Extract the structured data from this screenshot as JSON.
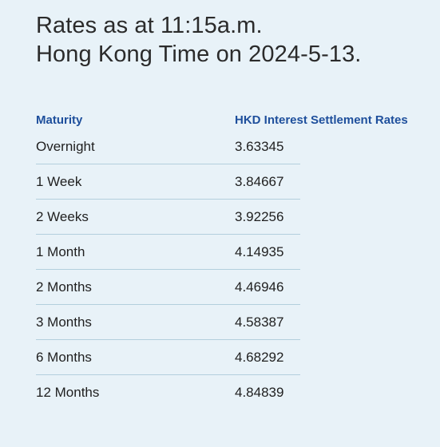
{
  "heading": {
    "line1": "Rates as at 11:15a.m.",
    "line2": "Hong Kong Time on 2024-5-13."
  },
  "table": {
    "headers": {
      "maturity": "Maturity",
      "rate": "HKD Interest Settlement Rates"
    },
    "rows": [
      {
        "maturity": "Overnight",
        "rate": "3.63345"
      },
      {
        "maturity": "1 Week",
        "rate": "3.84667"
      },
      {
        "maturity": "2 Weeks",
        "rate": "3.92256"
      },
      {
        "maturity": "1 Month",
        "rate": "4.14935"
      },
      {
        "maturity": "2 Months",
        "rate": "4.46946"
      },
      {
        "maturity": "3 Months",
        "rate": "4.58387"
      },
      {
        "maturity": "6 Months",
        "rate": "4.68292"
      },
      {
        "maturity": "12 Months",
        "rate": "4.84839"
      }
    ]
  },
  "colors": {
    "background": "#e8f2f8",
    "header_text": "#1e4f9c",
    "row_divider": "#b3cfdd"
  }
}
